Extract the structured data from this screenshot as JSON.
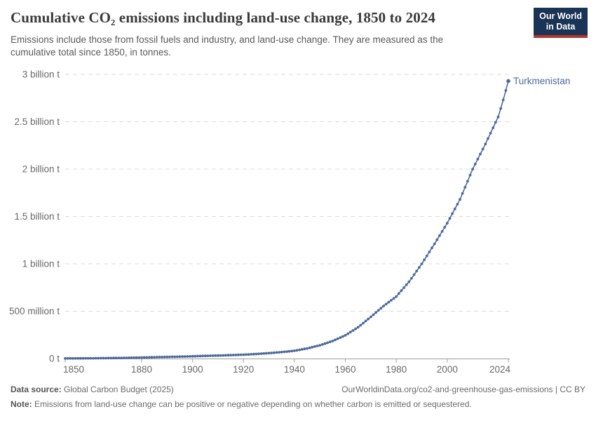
{
  "header": {
    "title": "Cumulative CO₂ emissions including land-use change, 1850 to 2024",
    "subtitle": "Emissions include those from fossil fuels and industry, and land-use change. They are measured as the cumulative total since 1850, in tonnes."
  },
  "logo": {
    "line1": "Our World",
    "line2": "in Data",
    "bg_color": "#1a3455",
    "stripe_color": "#b0352c"
  },
  "chart_data": {
    "type": "line",
    "title": "Cumulative CO₂ emissions including land-use change, 1850 to 2024",
    "unit": "tonnes",
    "grid": "horizontal-dashed",
    "legend_position": "end-of-line-label",
    "colors": {
      "line": "#4c6a9c",
      "grid": "#dcdcdc",
      "axis": "#9e9e9e",
      "tick_text": "#696969"
    },
    "x": {
      "label": "",
      "range": [
        1850,
        2024
      ],
      "ticks": [
        1850,
        1880,
        1900,
        1920,
        1940,
        1960,
        1980,
        2000,
        2024
      ]
    },
    "y": {
      "label": "",
      "range_billion_tonnes": [
        0,
        3
      ],
      "ticks": [
        {
          "value": 0,
          "label": "0 t"
        },
        {
          "value": 0.5,
          "label": "500 million t"
        },
        {
          "value": 1,
          "label": "1 billion t"
        },
        {
          "value": 1.5,
          "label": "1.5 billion t"
        },
        {
          "value": 2,
          "label": "2 billion t"
        },
        {
          "value": 2.5,
          "label": "2.5 billion t"
        },
        {
          "value": 3,
          "label": "3 billion t"
        }
      ]
    },
    "series": [
      {
        "name": "Turkmenistan",
        "color": "#4c6a9c",
        "points_year_vs_billion_tonnes": [
          [
            1850,
            0.001
          ],
          [
            1855,
            0.002
          ],
          [
            1860,
            0.003
          ],
          [
            1865,
            0.0045
          ],
          [
            1870,
            0.006
          ],
          [
            1875,
            0.008
          ],
          [
            1880,
            0.011
          ],
          [
            1885,
            0.014
          ],
          [
            1890,
            0.017
          ],
          [
            1895,
            0.02
          ],
          [
            1900,
            0.024
          ],
          [
            1905,
            0.028
          ],
          [
            1910,
            0.032
          ],
          [
            1915,
            0.036
          ],
          [
            1920,
            0.041
          ],
          [
            1925,
            0.048
          ],
          [
            1930,
            0.057
          ],
          [
            1935,
            0.068
          ],
          [
            1940,
            0.082
          ],
          [
            1945,
            0.107
          ],
          [
            1950,
            0.14
          ],
          [
            1955,
            0.185
          ],
          [
            1960,
            0.245
          ],
          [
            1965,
            0.33
          ],
          [
            1970,
            0.44
          ],
          [
            1975,
            0.555
          ],
          [
            1980,
            0.655
          ],
          [
            1985,
            0.81
          ],
          [
            1990,
            1.0
          ],
          [
            1995,
            1.21
          ],
          [
            2000,
            1.43
          ],
          [
            2005,
            1.68
          ],
          [
            2010,
            2.0
          ],
          [
            2015,
            2.265
          ],
          [
            2020,
            2.55
          ],
          [
            2022,
            2.73
          ],
          [
            2024,
            2.93
          ]
        ]
      }
    ]
  },
  "footer": {
    "source_label": "Data source:",
    "source_text": " Global Carbon Budget (2025)",
    "link_text": "OurWorldinData.org/co2-and-greenhouse-gas-emissions | CC BY",
    "note_label": "Note:",
    "note_text": " Emissions from land-use change can be positive or negative depending on whether carbon is emitted or sequestered."
  }
}
